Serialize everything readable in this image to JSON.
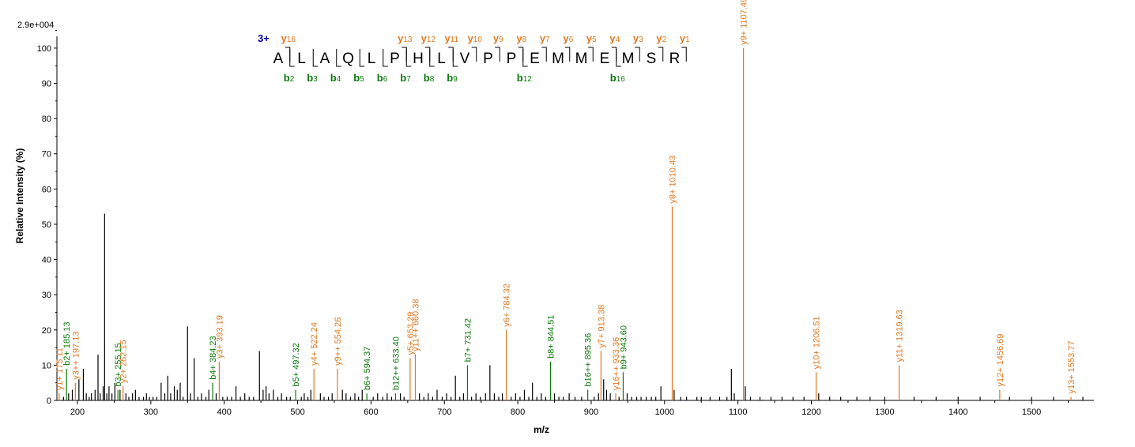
{
  "chart_data": {
    "type": "bar",
    "scale_label": "2.9e+004",
    "xlabel": "m/z",
    "ylabel": "Relative   Intensity (%)",
    "xlim": [
      172,
      1585
    ],
    "ylim": [
      0,
      102
    ],
    "xticks": [
      200,
      300,
      400,
      500,
      600,
      700,
      800,
      900,
      1000,
      1100,
      1200,
      1300,
      1400,
      1500
    ],
    "yticks": [
      0,
      10,
      20,
      30,
      40,
      50,
      60,
      70,
      80,
      90,
      100
    ],
    "colors": {
      "y_ion": "#e07820",
      "b_ion": "#0a7a0a",
      "other": "#000000",
      "charge": "#0000a0"
    },
    "sequence": {
      "charge": "3+",
      "residues": [
        "A",
        "L",
        "A",
        "Q",
        "L",
        "P",
        "H",
        "L",
        "V",
        "P",
        "P",
        "E",
        "M",
        "M",
        "E",
        "M",
        "S",
        "R"
      ],
      "y_fragments": [
        {
          "after": 2,
          "label": "y",
          "n": "16"
        },
        {
          "after": 7,
          "label": "y",
          "n": "13"
        },
        {
          "after": 8,
          "label": "y",
          "n": "12"
        },
        {
          "after": 9,
          "label": "y",
          "n": "11"
        },
        {
          "after": 10,
          "label": "y",
          "n": "10"
        },
        {
          "after": 11,
          "label": "y",
          "n": "9"
        },
        {
          "after": 12,
          "label": "y",
          "n": "8"
        },
        {
          "after": 13,
          "label": "y",
          "n": "7"
        },
        {
          "after": 14,
          "label": "y",
          "n": "6"
        },
        {
          "after": 15,
          "label": "y",
          "n": "5"
        },
        {
          "after": 16,
          "label": "y",
          "n": "4"
        },
        {
          "after": 17,
          "label": "y",
          "n": "3"
        },
        {
          "after": 18,
          "label": "y",
          "n": "2"
        },
        {
          "after": 19,
          "label": "y",
          "n": "1"
        }
      ],
      "b_fragments": [
        {
          "after": 2,
          "label": "b",
          "n": "2"
        },
        {
          "after": 3,
          "label": "b",
          "n": "3"
        },
        {
          "after": 4,
          "label": "b",
          "n": "4"
        },
        {
          "after": 5,
          "label": "b",
          "n": "5"
        },
        {
          "after": 6,
          "label": "b",
          "n": "6"
        },
        {
          "after": 7,
          "label": "b",
          "n": "7"
        },
        {
          "after": 8,
          "label": "b",
          "n": "8"
        },
        {
          "after": 9,
          "label": "b",
          "n": "9"
        },
        {
          "after": 12,
          "label": "b",
          "n": "12"
        },
        {
          "after": 16,
          "label": "b",
          "n": "16"
        }
      ]
    },
    "annotated_peaks": [
      {
        "mz": 175.11,
        "intensity": 2,
        "label": "y1+ 175.11",
        "ion": "y"
      },
      {
        "mz": 185.13,
        "intensity": 9,
        "label": "b2+ 185.13",
        "ion": "b"
      },
      {
        "mz": 197.13,
        "intensity": 5,
        "label": "y3++ 197.13",
        "ion": "y"
      },
      {
        "mz": 255.15,
        "intensity": 3,
        "label": "b3+ 255.15",
        "ion": "b"
      },
      {
        "mz": 262.15,
        "intensity": 4,
        "label": "y2+ 262.15",
        "ion": "y"
      },
      {
        "mz": 384.23,
        "intensity": 5,
        "label": "b4+ 384.23",
        "ion": "b"
      },
      {
        "mz": 393.19,
        "intensity": 11,
        "label": "y3+ 393.19",
        "ion": "y"
      },
      {
        "mz": 497.32,
        "intensity": 3,
        "label": "b5+ 497.32",
        "ion": "b"
      },
      {
        "mz": 522.24,
        "intensity": 9,
        "label": "y4+ 522.24",
        "ion": "y"
      },
      {
        "mz": 554.26,
        "intensity": 9,
        "label": "y9++ 554.26",
        "ion": "y"
      },
      {
        "mz": 594.37,
        "intensity": 2,
        "label": "b6+ 594.37",
        "ion": "b"
      },
      {
        "mz": 633.4,
        "intensity": 2,
        "label": "b12++ 633.40",
        "ion": "b"
      },
      {
        "mz": 653.29,
        "intensity": 12,
        "label": "y5+ 653.29",
        "ion": "y"
      },
      {
        "mz": 660.38,
        "intensity": 13,
        "label": "y11++ 660.38",
        "ion": "y"
      },
      {
        "mz": 731.42,
        "intensity": 10,
        "label": "b7+ 731.42",
        "ion": "b"
      },
      {
        "mz": 784.32,
        "intensity": 20,
        "label": "y6+ 784.32",
        "ion": "y"
      },
      {
        "mz": 844.51,
        "intensity": 11,
        "label": "b8+ 844.51",
        "ion": "b"
      },
      {
        "mz": 895.36,
        "intensity": 3,
        "label": "b16++ 895.36",
        "ion": "b"
      },
      {
        "mz": 913.38,
        "intensity": 14,
        "label": "y7+ 913.38",
        "ion": "y"
      },
      {
        "mz": 933.36,
        "intensity": 2,
        "label": "y16++ 933.36",
        "ion": "y"
      },
      {
        "mz": 943.6,
        "intensity": 8,
        "label": "b9+ 943.60",
        "ion": "b"
      },
      {
        "mz": 1010.43,
        "intensity": 55,
        "label": "y8+ 1010.43",
        "ion": "y"
      },
      {
        "mz": 1107.49,
        "intensity": 100,
        "label": "y9+ 1107.49",
        "ion": "y"
      },
      {
        "mz": 1206.51,
        "intensity": 8,
        "label": "y10+ 1206.51",
        "ion": "y"
      },
      {
        "mz": 1319.63,
        "intensity": 10,
        "label": "y11+ 1319.63",
        "ion": "y"
      },
      {
        "mz": 1456.69,
        "intensity": 3,
        "label": "y12+ 1456.69",
        "ion": "y"
      },
      {
        "mz": 1553.77,
        "intensity": 1,
        "label": "y13+ 1553.77",
        "ion": "y"
      }
    ],
    "unannotated_peaks": [
      [
        181,
        1
      ],
      [
        188,
        2
      ],
      [
        193,
        3
      ],
      [
        202,
        6
      ],
      [
        208,
        9
      ],
      [
        212,
        2
      ],
      [
        216,
        1
      ],
      [
        219,
        2
      ],
      [
        224,
        3
      ],
      [
        228,
        13
      ],
      [
        231,
        2
      ],
      [
        235,
        4
      ],
      [
        237,
        53
      ],
      [
        240,
        2
      ],
      [
        243,
        4
      ],
      [
        247,
        2
      ],
      [
        251,
        5
      ],
      [
        258,
        3
      ],
      [
        266,
        2
      ],
      [
        270,
        1
      ],
      [
        275,
        2
      ],
      [
        279,
        3
      ],
      [
        284,
        1
      ],
      [
        290,
        1
      ],
      [
        294,
        2
      ],
      [
        298,
        1
      ],
      [
        303,
        1
      ],
      [
        308,
        1
      ],
      [
        314,
        5
      ],
      [
        319,
        2
      ],
      [
        323,
        7
      ],
      [
        327,
        2
      ],
      [
        332,
        4
      ],
      [
        336,
        3
      ],
      [
        340,
        5
      ],
      [
        344,
        1
      ],
      [
        350,
        21
      ],
      [
        354,
        2
      ],
      [
        359,
        12
      ],
      [
        364,
        1
      ],
      [
        369,
        2
      ],
      [
        375,
        1
      ],
      [
        379,
        3
      ],
      [
        389,
        2
      ],
      [
        398,
        1
      ],
      [
        404,
        1
      ],
      [
        410,
        1
      ],
      [
        416,
        4
      ],
      [
        422,
        1
      ],
      [
        428,
        2
      ],
      [
        434,
        1
      ],
      [
        440,
        1
      ],
      [
        448,
        14
      ],
      [
        453,
        3
      ],
      [
        457,
        4
      ],
      [
        461,
        2
      ],
      [
        467,
        3
      ],
      [
        473,
        1
      ],
      [
        478,
        2
      ],
      [
        485,
        1
      ],
      [
        490,
        1
      ],
      [
        505,
        1
      ],
      [
        509,
        2
      ],
      [
        514,
        1
      ],
      [
        518,
        3
      ],
      [
        531,
        2
      ],
      [
        536,
        1
      ],
      [
        542,
        1
      ],
      [
        547,
        2
      ],
      [
        561,
        3
      ],
      [
        566,
        2
      ],
      [
        572,
        1
      ],
      [
        578,
        2
      ],
      [
        583,
        1
      ],
      [
        588,
        3
      ],
      [
        603,
        1
      ],
      [
        609,
        2
      ],
      [
        616,
        1
      ],
      [
        622,
        2
      ],
      [
        628,
        1
      ],
      [
        640,
        2
      ],
      [
        645,
        1
      ],
      [
        666,
        2
      ],
      [
        672,
        1
      ],
      [
        678,
        2
      ],
      [
        684,
        1
      ],
      [
        690,
        3
      ],
      [
        697,
        1
      ],
      [
        703,
        2
      ],
      [
        709,
        1
      ],
      [
        715,
        7
      ],
      [
        721,
        1
      ],
      [
        726,
        2
      ],
      [
        737,
        1
      ],
      [
        743,
        2
      ],
      [
        749,
        1
      ],
      [
        756,
        2
      ],
      [
        762,
        10
      ],
      [
        768,
        2
      ],
      [
        774,
        1
      ],
      [
        779,
        2
      ],
      [
        791,
        1
      ],
      [
        797,
        2
      ],
      [
        803,
        1
      ],
      [
        809,
        3
      ],
      [
        815,
        1
      ],
      [
        820,
        5
      ],
      [
        826,
        1
      ],
      [
        832,
        2
      ],
      [
        838,
        1
      ],
      [
        850,
        2
      ],
      [
        856,
        1
      ],
      [
        862,
        1
      ],
      [
        870,
        2
      ],
      [
        878,
        1
      ],
      [
        887,
        1
      ],
      [
        904,
        1
      ],
      [
        910,
        2
      ],
      [
        917,
        6
      ],
      [
        921,
        3
      ],
      [
        926,
        2
      ],
      [
        938,
        1
      ],
      [
        949,
        2
      ],
      [
        955,
        1
      ],
      [
        962,
        1
      ],
      [
        968,
        1
      ],
      [
        975,
        1
      ],
      [
        982,
        1
      ],
      [
        988,
        1
      ],
      [
        995,
        4
      ],
      [
        1013,
        3
      ],
      [
        1022,
        1
      ],
      [
        1030,
        1
      ],
      [
        1044,
        1
      ],
      [
        1050,
        1
      ],
      [
        1062,
        1
      ],
      [
        1075,
        1
      ],
      [
        1085,
        1
      ],
      [
        1091,
        9
      ],
      [
        1095,
        2
      ],
      [
        1110,
        4
      ],
      [
        1117,
        1
      ],
      [
        1130,
        1
      ],
      [
        1145,
        1
      ],
      [
        1160,
        1
      ],
      [
        1175,
        1
      ],
      [
        1190,
        1
      ],
      [
        1210,
        2
      ],
      [
        1225,
        1
      ],
      [
        1240,
        1
      ],
      [
        1262,
        1
      ],
      [
        1280,
        1
      ],
      [
        1300,
        1
      ],
      [
        1340,
        1
      ],
      [
        1370,
        1
      ],
      [
        1400,
        1
      ],
      [
        1430,
        1
      ],
      [
        1470,
        1
      ],
      [
        1500,
        1
      ],
      [
        1530,
        1
      ],
      [
        1570,
        1
      ]
    ]
  }
}
